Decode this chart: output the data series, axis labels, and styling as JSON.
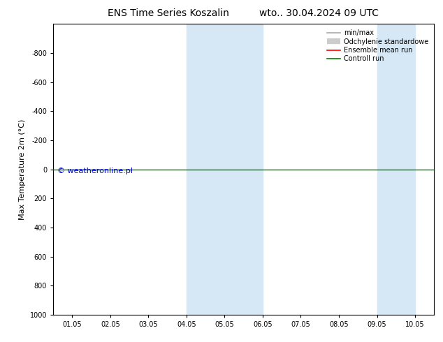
{
  "title_left": "ENS Time Series Koszalin",
  "title_right": "wto.. 30.04.2024 09 UTC",
  "ylabel": "Max Temperature 2m (°C)",
  "ylim_top": -1000,
  "ylim_bottom": 1000,
  "yticks": [
    -800,
    -600,
    -400,
    -200,
    0,
    200,
    400,
    600,
    800,
    1000
  ],
  "xtick_labels": [
    "01.05",
    "02.05",
    "03.05",
    "04.05",
    "05.05",
    "06.05",
    "07.05",
    "08.05",
    "09.05",
    "10.05"
  ],
  "xtick_positions": [
    0,
    1,
    2,
    3,
    4,
    5,
    6,
    7,
    8,
    9
  ],
  "shade_bands": [
    {
      "xmin": 3.0,
      "xmax": 4.0
    },
    {
      "xmin": 4.0,
      "xmax": 5.0
    },
    {
      "xmin": 8.0,
      "xmax": 9.0
    }
  ],
  "shade_color": "#d6e8f5",
  "green_line_y": 0,
  "green_line_color": "#008000",
  "red_line_color": "#ff0000",
  "watermark": "© weatheronline.pl",
  "watermark_color": "#0000cc",
  "watermark_fontsize": 8,
  "background_color": "#ffffff",
  "plot_bg_color": "#ffffff",
  "title_fontsize": 10,
  "axis_label_fontsize": 8,
  "tick_fontsize": 7,
  "legend_fontsize": 7
}
